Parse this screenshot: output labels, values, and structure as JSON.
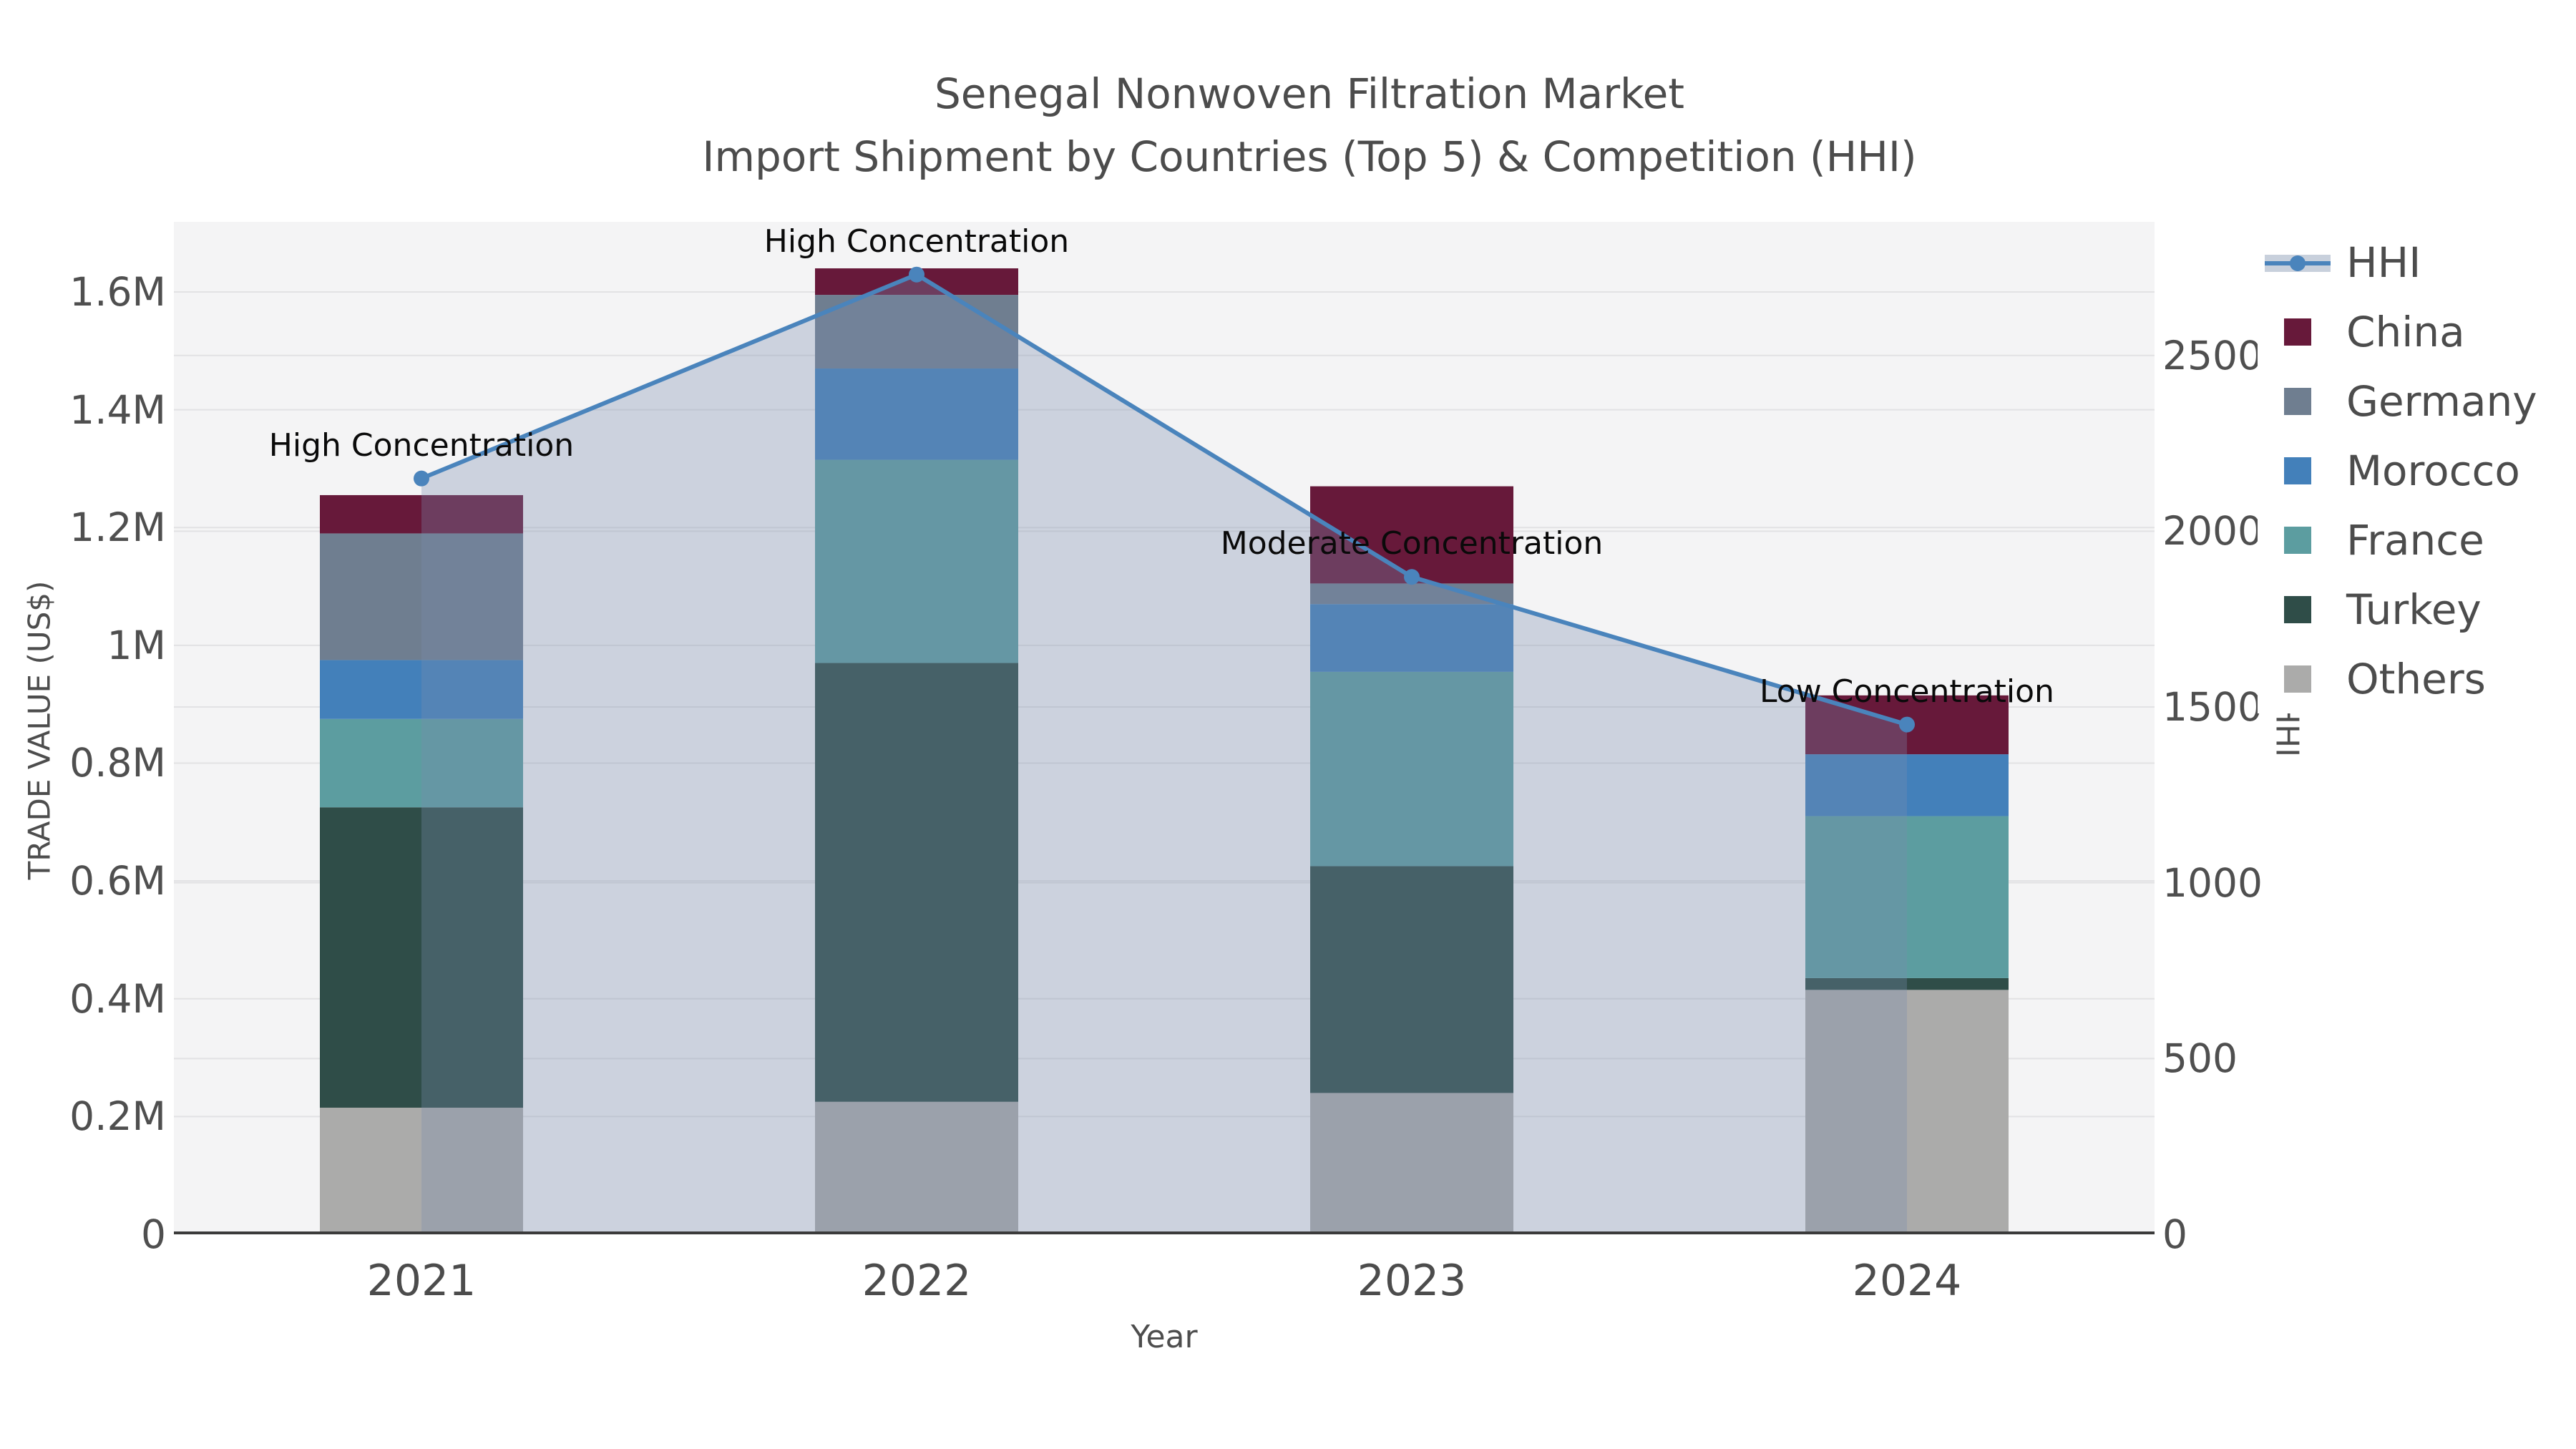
{
  "title": {
    "line1": "Senegal Nonwoven Filtration Market",
    "line2": "Import Shipment by Countries (Top 5) & Competition (HHI)"
  },
  "axes": {
    "left": {
      "title": "TRADE VALUE (US$)",
      "tick_labels": [
        "0",
        "0.2M",
        "0.4M",
        "0.6M",
        "0.8M",
        "1M",
        "1.2M",
        "1.4M",
        "1.6M"
      ],
      "tick_values_usd": [
        0,
        200000,
        400000,
        600000,
        800000,
        1000000,
        1200000,
        1400000,
        1600000
      ]
    },
    "right": {
      "title": "HHI",
      "tick_labels": [
        "0",
        "500",
        "1000",
        "1500",
        "2000",
        "2500"
      ],
      "tick_values": [
        0,
        500,
        1000,
        1500,
        2000,
        2500
      ]
    },
    "x": {
      "title": "Year",
      "categories": [
        "2021",
        "2022",
        "2023",
        "2024"
      ]
    }
  },
  "legend": {
    "items": [
      {
        "label": "HHI",
        "type": "line"
      },
      {
        "label": "China",
        "type": "swatch"
      },
      {
        "label": "Germany",
        "type": "swatch"
      },
      {
        "label": "Morocco",
        "type": "swatch"
      },
      {
        "label": "France",
        "type": "swatch"
      },
      {
        "label": "Turkey",
        "type": "swatch"
      },
      {
        "label": "Others",
        "type": "swatch"
      }
    ]
  },
  "annotations": [
    {
      "category": "2021",
      "text": "High Concentration"
    },
    {
      "category": "2022",
      "text": "High Concentration"
    },
    {
      "category": "2023",
      "text": "Moderate Concentration"
    },
    {
      "category": "2024",
      "text": "Low Concentration"
    }
  ],
  "colors": {
    "China": "#67193A",
    "Germany": "#6F7E90",
    "Morocco": "#4380BA",
    "France": "#5C9DA0",
    "Turkey": "#2F4D48",
    "Others": "#ABABAA",
    "hhi_line": "#4A84BC",
    "hhi_area_fill": "rgba(120,140,175,0.32)",
    "plot_background": "#f4f4f5",
    "gridline": "#e2e2e4",
    "baseline": "#3b3b3b",
    "title_text": "#4c4c4c",
    "annotation_text": "#0a0a0a"
  },
  "chart_data": {
    "type": "bar",
    "stacked": true,
    "categories": [
      "2021",
      "2022",
      "2023",
      "2024"
    ],
    "xlabel": "Year",
    "ylabel_left": "TRADE VALUE (US$)",
    "ylabel_right": "HHI",
    "ylim_left_usd": [
      0,
      1719000
    ],
    "ylim_right_hhi": [
      0,
      2880
    ],
    "grid": true,
    "legend_position": "right",
    "series": [
      {
        "name": "China",
        "values_usd": [
          65000,
          45000,
          165000,
          100000
        ]
      },
      {
        "name": "Germany",
        "values_usd": [
          215000,
          125000,
          35000,
          0
        ]
      },
      {
        "name": "Morocco",
        "values_usd": [
          100000,
          155000,
          115000,
          105000
        ]
      },
      {
        "name": "France",
        "values_usd": [
          150000,
          345000,
          330000,
          275000
        ]
      },
      {
        "name": "Turkey",
        "values_usd": [
          510000,
          745000,
          385000,
          20000
        ]
      },
      {
        "name": "Others",
        "values_usd": [
          215000,
          225000,
          240000,
          415000
        ]
      }
    ],
    "bar_totals_usd": [
      1255000,
      1640000,
      1270000,
      915000
    ],
    "line_series": {
      "name": "HHI",
      "axis": "right",
      "values": [
        2150,
        2730,
        1870,
        1450
      ],
      "area_fill": true
    }
  }
}
